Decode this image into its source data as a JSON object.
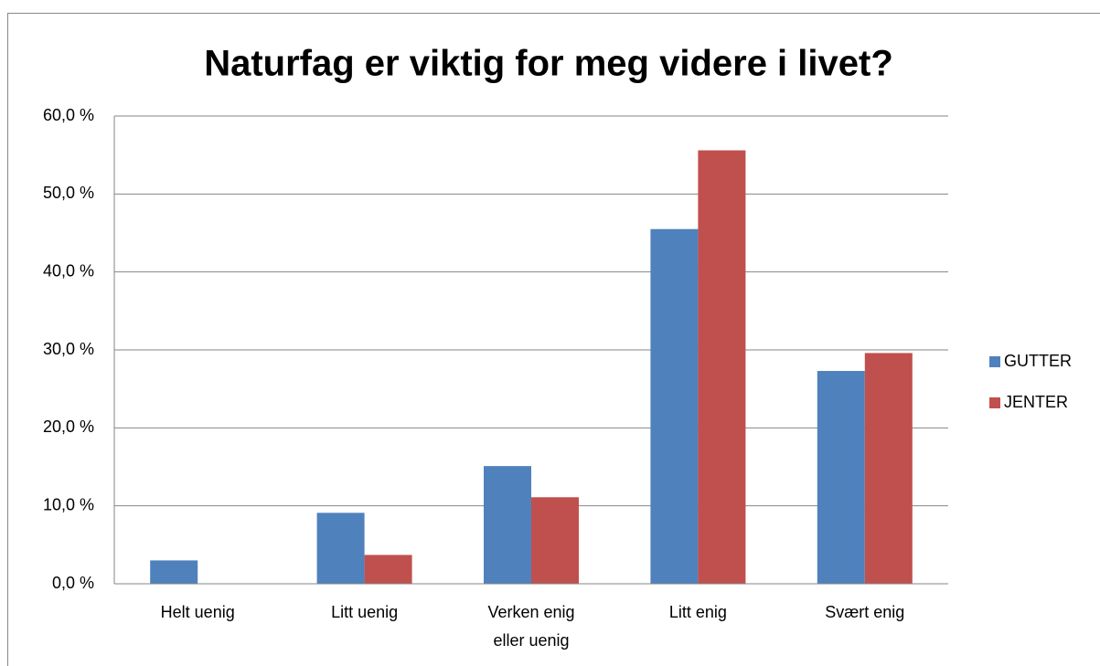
{
  "chart_data": {
    "type": "bar",
    "title": "Naturfag er viktig for meg videre i livet?",
    "categories": [
      "Helt uenig",
      "Litt uenig",
      "Verken enig eller uenig",
      "Litt enig",
      "Svært enig"
    ],
    "series": [
      {
        "name": "GUTTER",
        "color": "#4f81bd",
        "values": [
          3.0,
          9.1,
          15.1,
          45.5,
          27.3
        ]
      },
      {
        "name": "JENTER",
        "color": "#c0504d",
        "values": [
          0,
          3.7,
          11.1,
          55.6,
          29.6
        ]
      }
    ],
    "ylim": [
      0,
      60
    ],
    "yticks": [
      {
        "value": 0,
        "label": "0,0 %"
      },
      {
        "value": 10,
        "label": "10,0 %"
      },
      {
        "value": 20,
        "label": "20,0 %"
      },
      {
        "value": 30,
        "label": "30,0 %"
      },
      {
        "value": 40,
        "label": "40,0 %"
      },
      {
        "value": 50,
        "label": "50,0 %"
      },
      {
        "value": 60,
        "label": "60,0 %"
      }
    ],
    "grid": true,
    "legend": "right"
  }
}
